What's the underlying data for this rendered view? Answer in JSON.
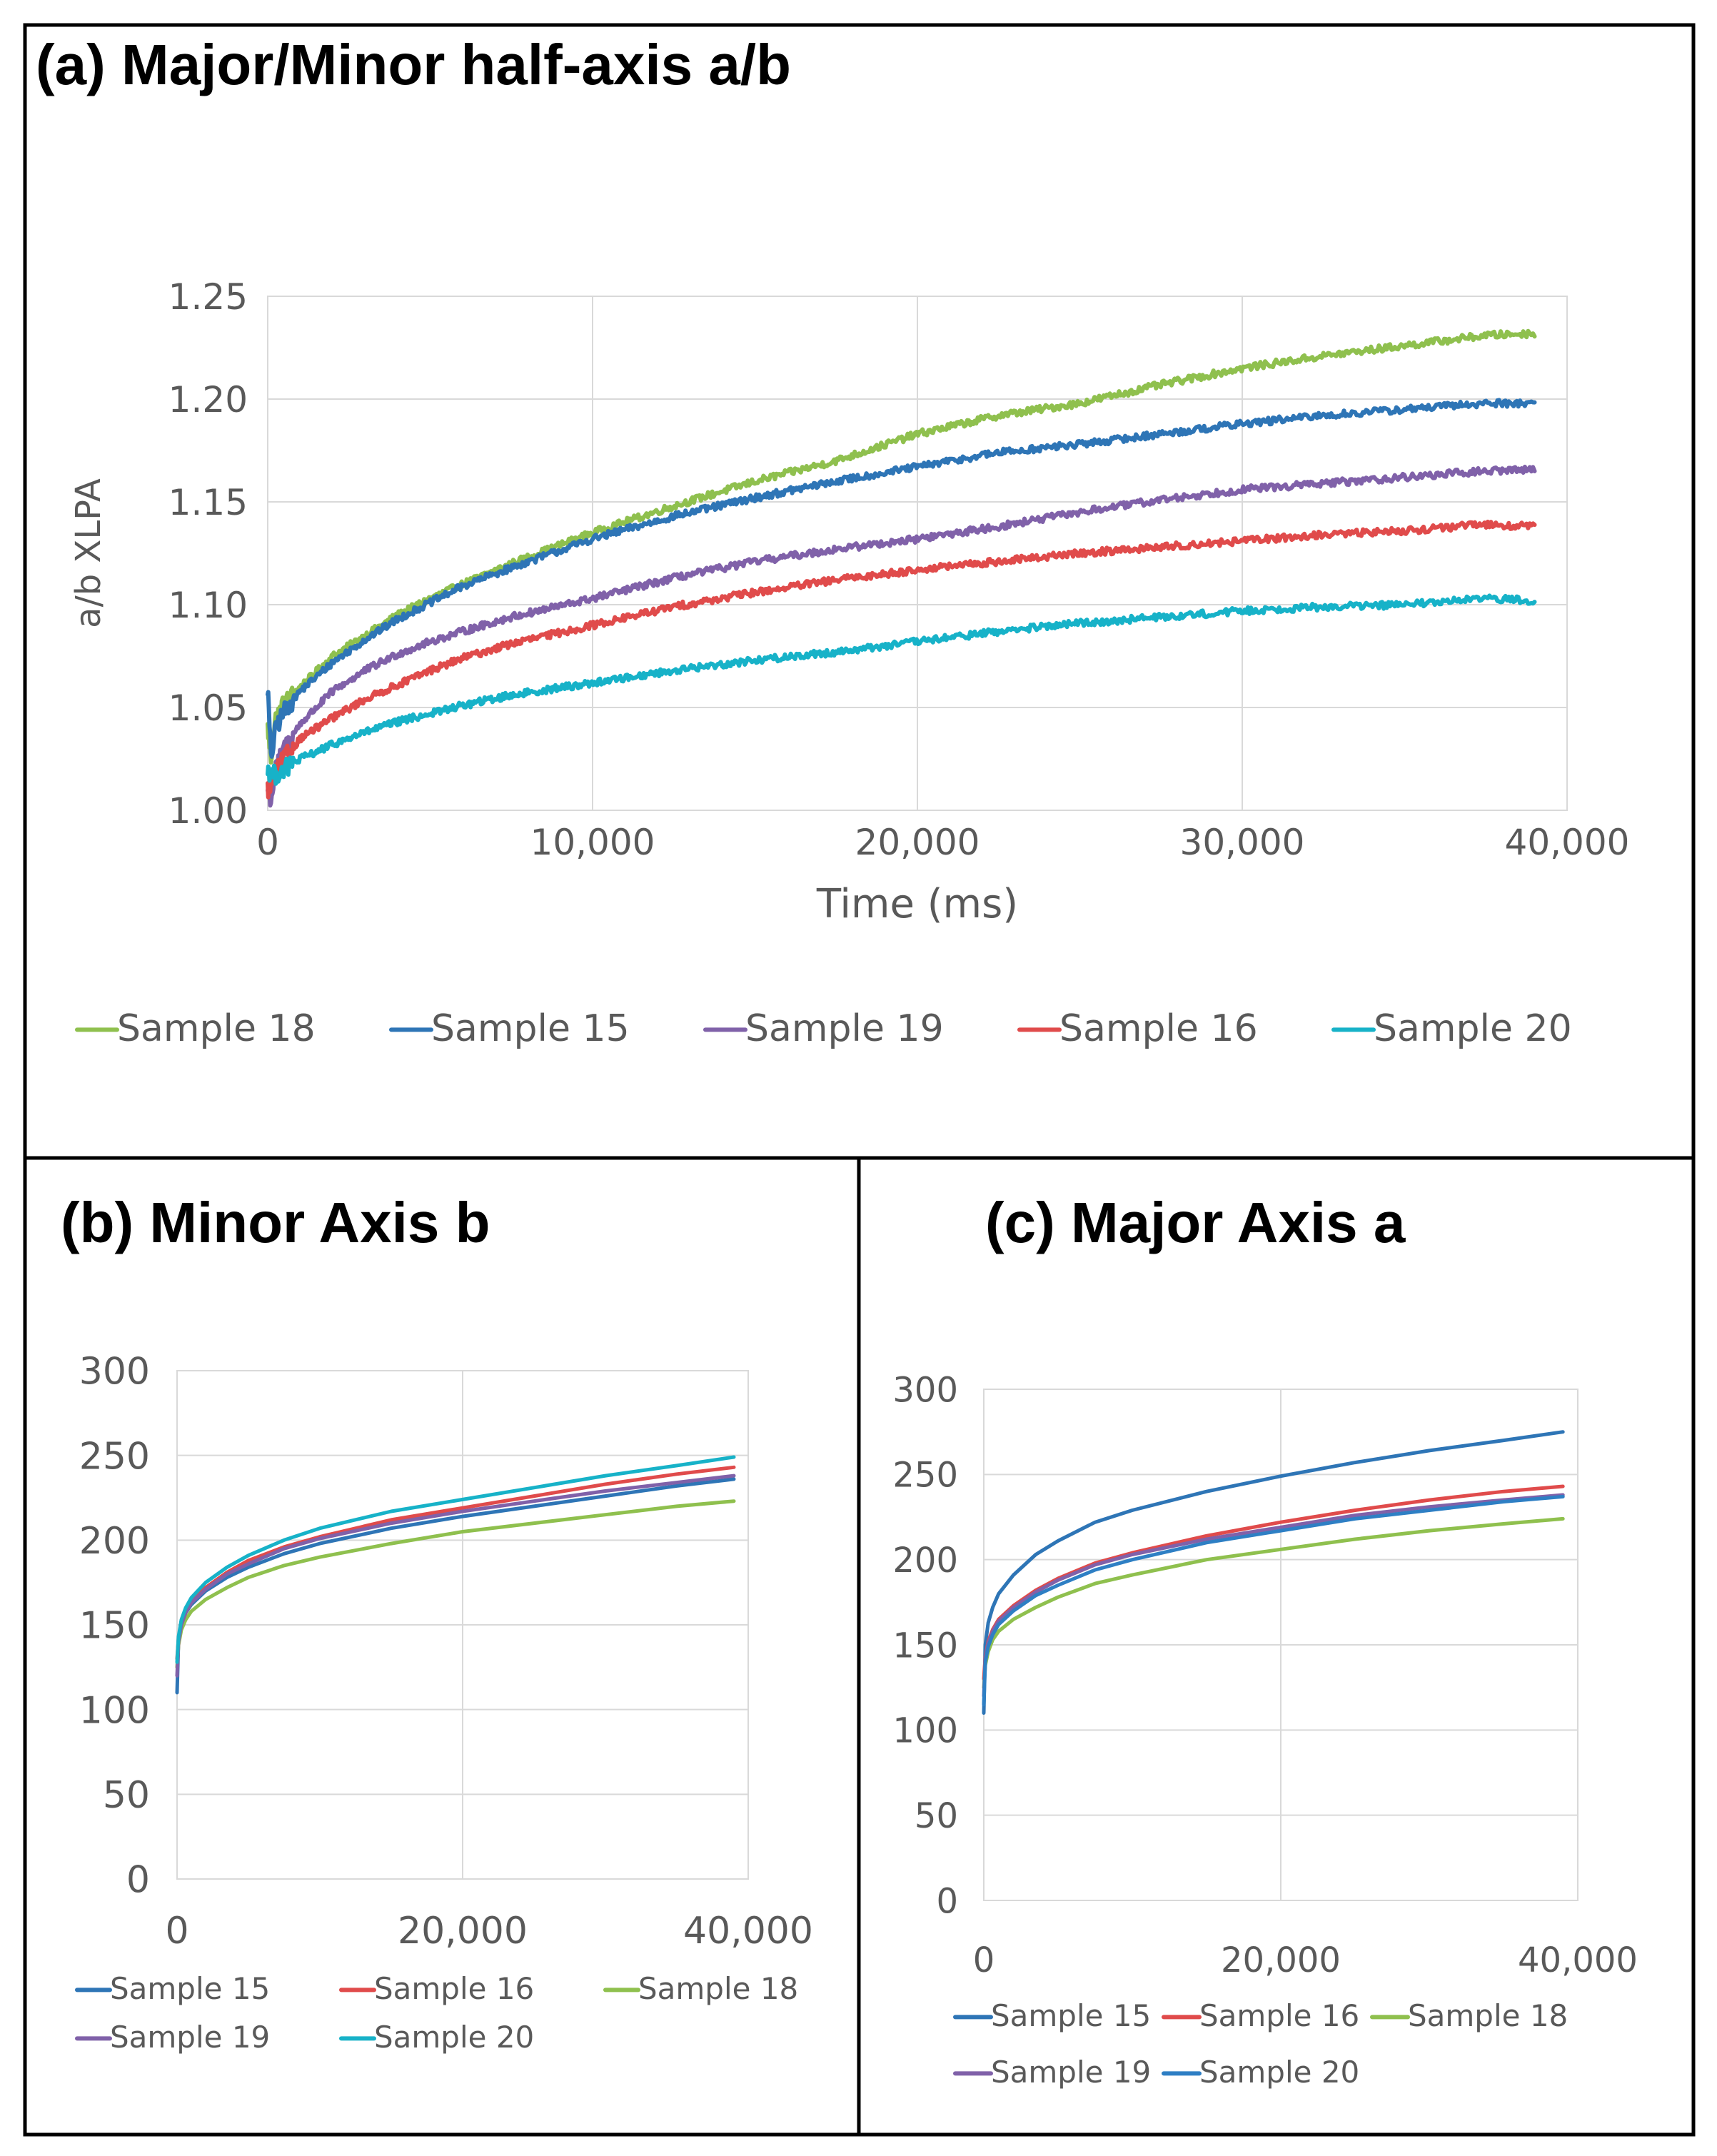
{
  "colors": {
    "Sample 15": "#2e75b6",
    "Sample 16": "#e04b4b",
    "Sample 18": "#8fc04e",
    "Sample 19": "#8061a9",
    "Sample 20": "#17b2c8",
    "Sample 20 (c)": "#2e7fc4"
  },
  "chart_data": [
    {
      "id": "a",
      "type": "line",
      "title": "(a) Major/Minor half-axis a/b",
      "xlabel": "Time (ms)",
      "ylabel": "a/b XLPA",
      "xlim": [
        0,
        40000
      ],
      "ylim": [
        1.0,
        1.25
      ],
      "xticks": [
        0,
        10000,
        20000,
        30000,
        40000
      ],
      "xtick_labels": [
        "0",
        "10,000",
        "20,000",
        "30,000",
        "40,000"
      ],
      "yticks": [
        1.0,
        1.05,
        1.1,
        1.15,
        1.2,
        1.25
      ],
      "ytick_labels": [
        "1.00",
        "1.05",
        "1.10",
        "1.15",
        "1.20",
        "1.25"
      ],
      "grid": true,
      "legend": [
        "Sample 18",
        "Sample 15",
        "Sample 19",
        "Sample 16",
        "Sample 20"
      ],
      "legend_position": "bottom",
      "noisy": true,
      "x": [
        0,
        100,
        250,
        500,
        1000,
        2000,
        3000,
        4000,
        5000,
        6000,
        7500,
        10000,
        12500,
        15000,
        17500,
        20000,
        22500,
        25000,
        27500,
        30000,
        32500,
        35000,
        37500,
        39000
      ],
      "series": [
        {
          "name": "Sample 18",
          "values": [
            1.04,
            1.025,
            1.045,
            1.052,
            1.06,
            1.075,
            1.085,
            1.095,
            1.103,
            1.11,
            1.12,
            1.135,
            1.148,
            1.16,
            1.17,
            1.183,
            1.192,
            1.198,
            1.207,
            1.215,
            1.221,
            1.226,
            1.231,
            1.232
          ]
        },
        {
          "name": "Sample 15",
          "values": [
            1.06,
            1.025,
            1.04,
            1.048,
            1.058,
            1.072,
            1.083,
            1.093,
            1.101,
            1.109,
            1.118,
            1.132,
            1.143,
            1.152,
            1.16,
            1.167,
            1.174,
            1.178,
            1.183,
            1.188,
            1.192,
            1.195,
            1.198,
            1.198
          ]
        },
        {
          "name": "Sample 19",
          "values": [
            1.01,
            1.005,
            1.02,
            1.03,
            1.042,
            1.058,
            1.068,
            1.076,
            1.082,
            1.087,
            1.094,
            1.103,
            1.113,
            1.121,
            1.127,
            1.132,
            1.138,
            1.145,
            1.151,
            1.156,
            1.159,
            1.162,
            1.165,
            1.166
          ]
        },
        {
          "name": "Sample 16",
          "values": [
            1.01,
            1.012,
            1.018,
            1.025,
            1.035,
            1.045,
            1.054,
            1.061,
            1.068,
            1.074,
            1.081,
            1.09,
            1.099,
            1.106,
            1.112,
            1.117,
            1.121,
            1.125,
            1.128,
            1.131,
            1.134,
            1.136,
            1.139,
            1.138
          ]
        },
        {
          "name": "Sample 20",
          "values": [
            1.02,
            1.018,
            1.017,
            1.02,
            1.025,
            1.032,
            1.038,
            1.043,
            1.047,
            1.051,
            1.056,
            1.062,
            1.068,
            1.073,
            1.077,
            1.082,
            1.087,
            1.091,
            1.094,
            1.097,
            1.099,
            1.1,
            1.103,
            1.102
          ]
        }
      ]
    },
    {
      "id": "b",
      "type": "line",
      "title": "(b) Minor Axis b",
      "xlabel": "",
      "ylabel": "",
      "xlim": [
        0,
        40000
      ],
      "ylim": [
        0,
        300
      ],
      "xticks": [
        0,
        20000,
        40000
      ],
      "xtick_labels": [
        "0",
        "20,000",
        "40,000"
      ],
      "yticks": [
        0,
        50,
        100,
        150,
        200,
        250,
        300
      ],
      "ytick_labels": [
        "0",
        "50",
        "100",
        "150",
        "200",
        "250",
        "300"
      ],
      "grid": true,
      "legend": [
        "Sample 15",
        "Sample 16",
        "Sample 18",
        "Sample 19",
        "Sample 20"
      ],
      "legend_position": "bottom",
      "noisy": false,
      "x": [
        0,
        100,
        300,
        600,
        1000,
        2000,
        3500,
        5000,
        7500,
        10000,
        15000,
        20000,
        25000,
        30000,
        35000,
        39000
      ],
      "series": [
        {
          "name": "Sample 15",
          "values": [
            110,
            140,
            150,
            157,
            162,
            170,
            178,
            184,
            192,
            198,
            207,
            214,
            220,
            226,
            232,
            236
          ]
        },
        {
          "name": "Sample 16",
          "values": [
            130,
            142,
            152,
            159,
            164,
            172,
            181,
            188,
            196,
            202,
            212,
            219,
            226,
            233,
            239,
            243
          ]
        },
        {
          "name": "Sample 18",
          "values": [
            125,
            138,
            147,
            153,
            158,
            165,
            172,
            178,
            185,
            190,
            198,
            205,
            210,
            215,
            220,
            223
          ]
        },
        {
          "name": "Sample 19",
          "values": [
            120,
            140,
            150,
            157,
            163,
            171,
            180,
            186,
            195,
            201,
            210,
            217,
            223,
            229,
            234,
            238
          ]
        },
        {
          "name": "Sample 20",
          "values": [
            128,
            143,
            153,
            160,
            166,
            175,
            184,
            191,
            200,
            207,
            217,
            224,
            231,
            238,
            244,
            249
          ]
        }
      ]
    },
    {
      "id": "c",
      "type": "line",
      "title": "(c) Major Axis a",
      "xlabel": "",
      "ylabel": "",
      "xlim": [
        0,
        40000
      ],
      "ylim": [
        0,
        300
      ],
      "xticks": [
        0,
        20000,
        40000
      ],
      "xtick_labels": [
        "0",
        "20,000",
        "40,000"
      ],
      "yticks": [
        0,
        50,
        100,
        150,
        200,
        250,
        300
      ],
      "ytick_labels": [
        "0",
        "50",
        "100",
        "150",
        "200",
        "250",
        "300"
      ],
      "grid": true,
      "legend": [
        "Sample 15",
        "Sample 16",
        "Sample 18",
        "Sample 19",
        "Sample 20"
      ],
      "legend_position": "bottom",
      "noisy": false,
      "x": [
        0,
        100,
        300,
        600,
        1000,
        2000,
        3500,
        5000,
        7500,
        10000,
        15000,
        20000,
        25000,
        30000,
        35000,
        39000
      ],
      "series": [
        {
          "name": "Sample 15",
          "values": [
            110,
            150,
            163,
            172,
            180,
            191,
            203,
            211,
            222,
            229,
            240,
            249,
            257,
            264,
            270,
            275
          ]
        },
        {
          "name": "Sample 16",
          "values": [
            130,
            143,
            152,
            159,
            165,
            173,
            182,
            189,
            198,
            204,
            214,
            222,
            229,
            235,
            240,
            243
          ]
        },
        {
          "name": "Sample 18",
          "values": [
            125,
            138,
            146,
            153,
            158,
            165,
            172,
            178,
            186,
            191,
            200,
            206,
            212,
            217,
            221,
            224
          ]
        },
        {
          "name": "Sample 19",
          "values": [
            120,
            142,
            151,
            158,
            164,
            172,
            181,
            188,
            197,
            203,
            212,
            219,
            226,
            231,
            235,
            238
          ]
        },
        {
          "name": "Sample 20",
          "values": [
            115,
            140,
            149,
            156,
            162,
            170,
            179,
            185,
            194,
            200,
            210,
            217,
            224,
            229,
            234,
            237
          ]
        }
      ]
    }
  ]
}
